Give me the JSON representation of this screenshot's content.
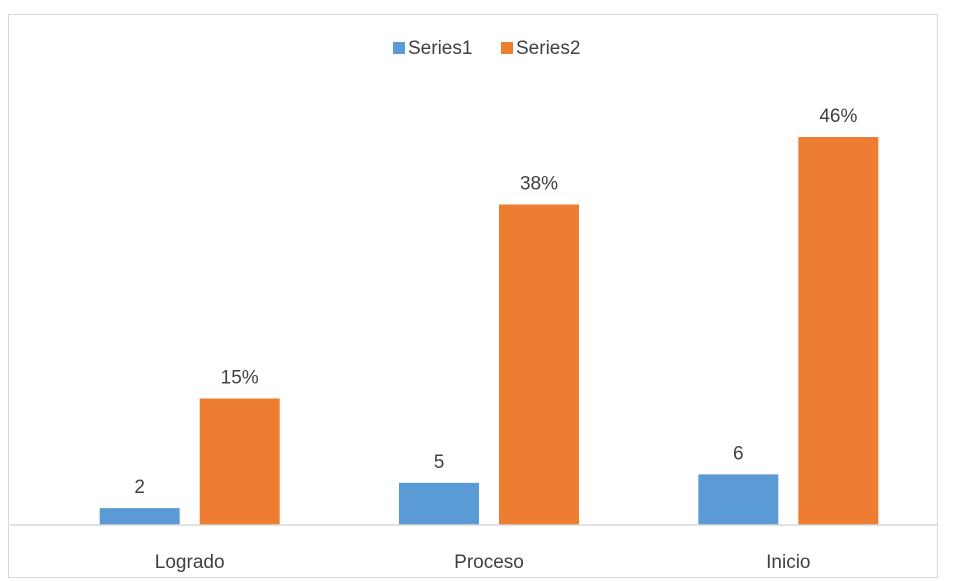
{
  "chart_data": {
    "type": "bar",
    "categories": [
      "Logrado",
      "Proceso",
      "Inicio"
    ],
    "series": [
      {
        "name": "Series1",
        "values": [
          2,
          5,
          6
        ],
        "labels": [
          "2",
          "5",
          "6"
        ],
        "color": "#5B9BD5"
      },
      {
        "name": "Series2",
        "values": [
          15,
          38,
          46
        ],
        "labels": [
          "15%",
          "38%",
          "46%"
        ],
        "color": "#ED7D31"
      }
    ],
    "legend_position": "top",
    "grid": false,
    "axis_color": "#d9d9d9",
    "text_color": "#404040"
  }
}
